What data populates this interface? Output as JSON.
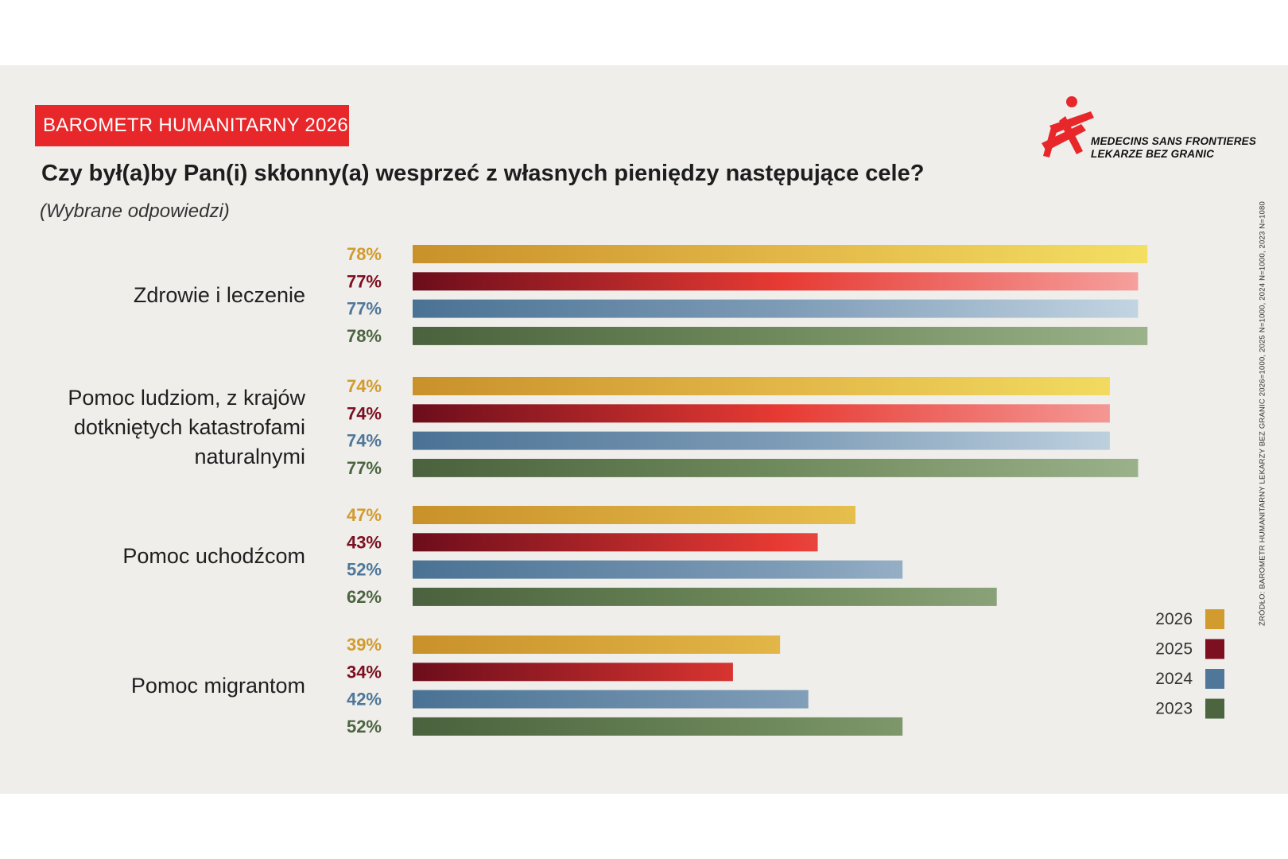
{
  "badge": "BAROMETR HUMANITARNY 2026",
  "title": "Czy był(a)by Pan(i) skłonny(a) wesprzeć z własnych pieniędzy następujące cele?",
  "subtitle": "(Wybrane odpowiedzi)",
  "logo": {
    "line1": "MEDECINS SANS FRONTIERES",
    "line2": "LEKARZE BEZ GRANIC",
    "icon": "msf-running-figure-icon"
  },
  "source": "ŹRÓDŁO: BAROMETR HUMANITARNY LEKARZY BEZ GRANIC 2026=1000, 2025 N=1000, 2024 N=1000, 2023 N=1080",
  "colors": {
    "2026": "#d29b2d",
    "2025": "#7d1020",
    "2024": "#4f7799",
    "2023": "#4c6540",
    "badge": "#e8272a"
  },
  "chart_data": {
    "type": "bar",
    "orientation": "horizontal",
    "value_suffix": "%",
    "xlim": [
      0,
      100
    ],
    "grid": false,
    "legend_position": "right",
    "categories": [
      {
        "label": [
          "Zdrowie i leczenie"
        ]
      },
      {
        "label": [
          "Pomoc ludziom, z krajów",
          "dotkniętych katastrofami",
          "naturalnymi"
        ]
      },
      {
        "label": [
          "Pomoc uchodźcom"
        ]
      },
      {
        "label": [
          "Pomoc migrantom"
        ]
      }
    ],
    "series": [
      {
        "name": "2026",
        "values": [
          78,
          74,
          47,
          39
        ]
      },
      {
        "name": "2025",
        "values": [
          77,
          74,
          43,
          34
        ]
      },
      {
        "name": "2024",
        "values": [
          77,
          74,
          52,
          42
        ]
      },
      {
        "name": "2023",
        "values": [
          78,
          77,
          62,
          52
        ]
      }
    ]
  }
}
